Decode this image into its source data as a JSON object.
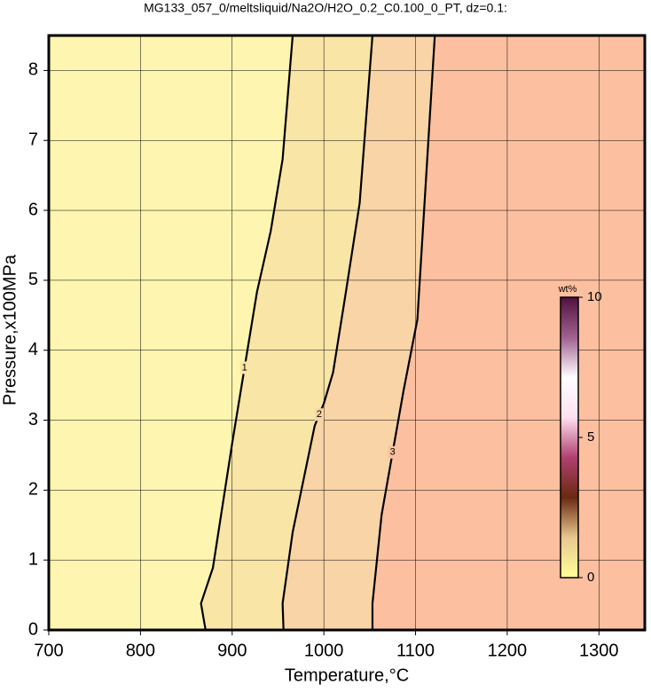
{
  "chart_data": {
    "type": "contour",
    "title": "MG133_057_0/meltsliquid/Na2O/H2O_0.2_C0.100_0_PT, dz=0.1:",
    "xlabel": "Temperature,°C",
    "ylabel": "Pressure,x100MPa",
    "xlim": [
      700,
      1350
    ],
    "xticks": [
      700,
      800,
      900,
      1000,
      1100,
      1200,
      1300
    ],
    "ylim": [
      0,
      8.5
    ],
    "yticks": [
      0,
      1,
      2,
      3,
      4,
      5,
      6,
      7,
      8
    ],
    "grid": true,
    "fills": [
      "#fdf5b0",
      "#f9e5a6",
      "#f8d4a6",
      "#fcc0a0"
    ],
    "series": [
      {
        "level": 1,
        "color": "#000000",
        "x": [
          871,
          866,
          879,
          900,
          927,
          942,
          955,
          966
        ],
        "y": [
          0,
          0.38,
          0.89,
          2.67,
          4.83,
          5.7,
          6.73,
          8.5
        ]
      },
      {
        "level": 2,
        "color": "#000000",
        "x": [
          956,
          955,
          966,
          990,
          1000,
          1010,
          1024,
          1039,
          1053
        ],
        "y": [
          0,
          0.38,
          1.4,
          2.92,
          3.24,
          3.68,
          4.83,
          6.1,
          8.5
        ]
      },
      {
        "level": 3,
        "color": "#000000",
        "x": [
          1053,
          1053,
          1063,
          1087,
          1102,
          1121
        ],
        "y": [
          0,
          0.38,
          1.65,
          3.43,
          4.44,
          8.5
        ]
      }
    ],
    "colorbar": {
      "label": "wt%",
      "lim": [
        0,
        10
      ],
      "ticks": [
        0,
        5,
        10
      ],
      "colors": [
        "#ffff99",
        "#e8c890",
        "#6a2a10",
        "#b04070",
        "#ffe0f0",
        "#ffffff",
        "#a06090",
        "#501040"
      ]
    }
  }
}
